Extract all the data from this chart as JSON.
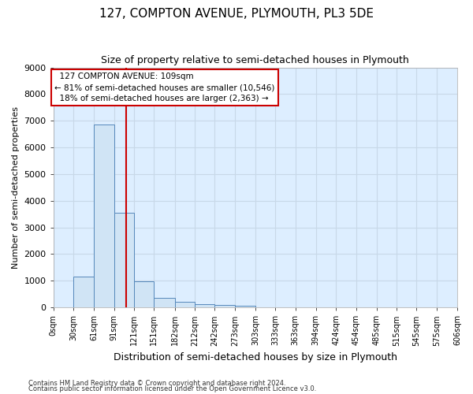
{
  "title": "127, COMPTON AVENUE, PLYMOUTH, PL3 5DE",
  "subtitle": "Size of property relative to semi-detached houses in Plymouth",
  "xlabel": "Distribution of semi-detached houses by size in Plymouth",
  "ylabel": "Number of semi-detached properties",
  "property_label": "127 COMPTON AVENUE: 109sqm",
  "pct_smaller": 81,
  "pct_larger": 18,
  "n_smaller": 10546,
  "n_larger": 2363,
  "bin_edges": [
    0,
    30,
    61,
    91,
    121,
    151,
    182,
    212,
    242,
    273,
    303,
    333,
    363,
    394,
    424,
    454,
    485,
    515,
    545,
    575,
    606
  ],
  "bin_counts": [
    0,
    1150,
    6850,
    3550,
    975,
    350,
    200,
    130,
    100,
    70,
    0,
    0,
    0,
    0,
    0,
    0,
    0,
    0,
    0,
    0
  ],
  "bar_color": "#d0e4f5",
  "bar_edge_color": "#5588bb",
  "vline_color": "#cc0000",
  "vline_x": 109,
  "annotation_box_edge_color": "#cc0000",
  "background_color": "#ddeeff",
  "grid_color": "#c8d8e8",
  "ylim": [
    0,
    9000
  ],
  "yticks": [
    0,
    1000,
    2000,
    3000,
    4000,
    5000,
    6000,
    7000,
    8000,
    9000
  ],
  "footer_line1": "Contains HM Land Registry data © Crown copyright and database right 2024.",
  "footer_line2": "Contains public sector information licensed under the Open Government Licence v3.0."
}
